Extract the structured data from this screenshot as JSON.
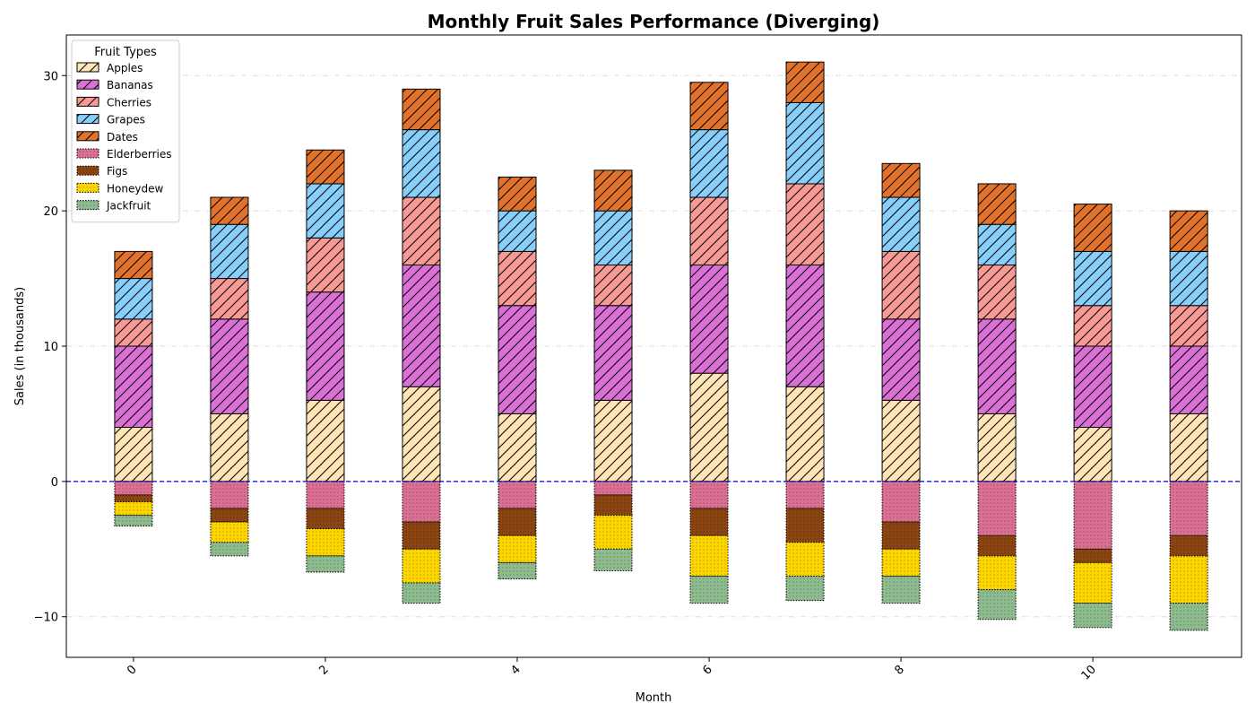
{
  "chart_data": {
    "type": "bar",
    "stacked": true,
    "diverging": true,
    "title": "Monthly Fruit Sales Performance (Diverging)",
    "xlabel": "Month",
    "ylabel": "Sales (in thousands)",
    "categories": [
      0,
      1,
      2,
      3,
      4,
      5,
      6,
      7,
      8,
      9,
      10,
      11
    ],
    "x_tick_labels": [
      "0",
      "2",
      "4",
      "6",
      "8",
      "10"
    ],
    "x_tick_values": [
      0,
      2,
      4,
      6,
      8,
      10
    ],
    "y_tick_values": [
      -10,
      0,
      10,
      20,
      30
    ],
    "y_tick_labels": [
      "−10",
      "0",
      "10",
      "20",
      "30"
    ],
    "ylim": [
      -13,
      33
    ],
    "xlim": [
      -0.7,
      11.55
    ],
    "grid": "horizontal dashed",
    "baseline": 0,
    "legend": {
      "title": "Fruit Types",
      "placement": "top-left"
    },
    "positive_series": [
      {
        "name": "Apples",
        "color": "#ffe4b5",
        "hatch": "diagonal",
        "values": [
          4,
          5,
          6,
          7,
          5,
          6,
          8,
          7,
          6,
          5,
          4,
          5
        ]
      },
      {
        "name": "Bananas",
        "color": "#da70d6",
        "hatch": "diagonal",
        "values": [
          6,
          7,
          8,
          9,
          8,
          7,
          8,
          9,
          6,
          7,
          6,
          5
        ]
      },
      {
        "name": "Cherries",
        "color": "#f79a96",
        "hatch": "diagonal",
        "values": [
          2,
          3,
          4,
          5,
          4,
          3,
          5,
          6,
          5,
          4,
          3,
          3
        ]
      },
      {
        "name": "Grapes",
        "color": "#87cefa",
        "hatch": "diagonal",
        "values": [
          3,
          4,
          4,
          5,
          3,
          4,
          5,
          6,
          4,
          3,
          4,
          4
        ]
      },
      {
        "name": "Dates",
        "color": "#e2712b",
        "hatch": "diagonal",
        "values": [
          2,
          2,
          2.5,
          3,
          2.5,
          3,
          3.5,
          3,
          2.5,
          3,
          3.5,
          3
        ]
      }
    ],
    "negative_series": [
      {
        "name": "Elderberries",
        "color": "#db7093",
        "hatch": "dots",
        "values": [
          -1,
          -2,
          -2,
          -3,
          -2,
          -1,
          -2,
          -2,
          -3,
          -4,
          -5,
          -4
        ]
      },
      {
        "name": "Figs",
        "color": "#8b4513",
        "hatch": "dots",
        "values": [
          -0.5,
          -1,
          -1.5,
          -2,
          -2,
          -1.5,
          -2,
          -2.5,
          -2,
          -1.5,
          -1,
          -1.5
        ]
      },
      {
        "name": "Honeydew",
        "color": "#ffd700",
        "hatch": "dots",
        "values": [
          -1,
          -1.5,
          -2,
          -2.5,
          -2,
          -2.5,
          -3,
          -2.5,
          -2,
          -2.5,
          -3,
          -3.5
        ]
      },
      {
        "name": "Jackfruit",
        "color": "#8fbc8f",
        "hatch": "dots",
        "values": [
          -0.8,
          -1,
          -1.2,
          -1.5,
          -1.2,
          -1.6,
          -2,
          -1.8,
          -2,
          -2.2,
          -1.8,
          -2
        ]
      }
    ]
  }
}
